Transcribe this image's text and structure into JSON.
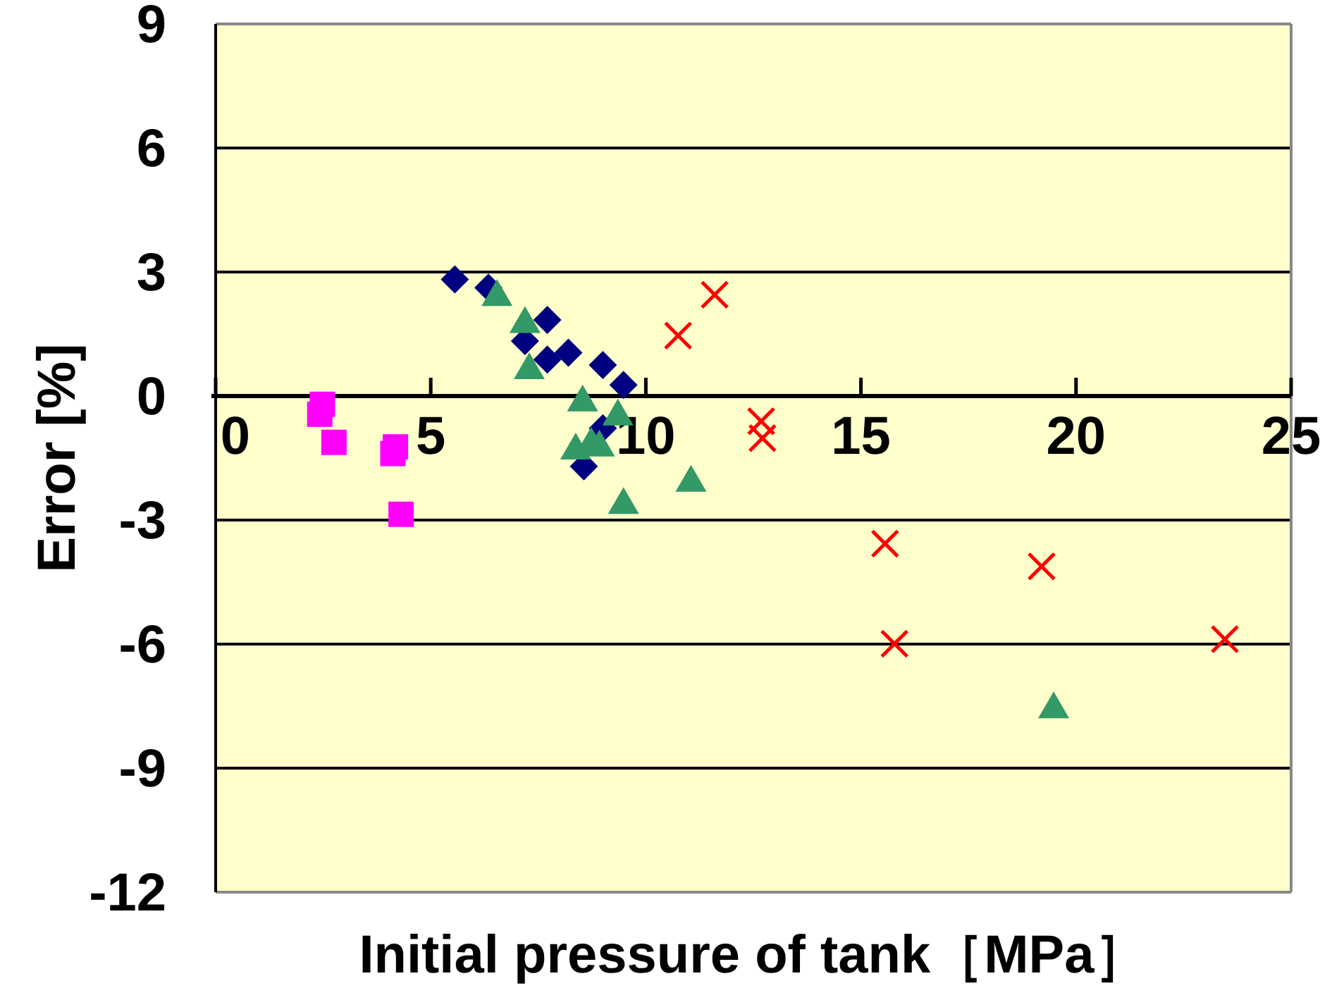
{
  "chart_data": {
    "type": "scatter",
    "xlabel": "Initial pressure of tank［MPa］",
    "ylabel": "Error [%]",
    "xlim": [
      0,
      25
    ],
    "xticks": [
      0,
      5,
      10,
      15,
      20,
      25
    ],
    "ylim": [
      -12,
      9
    ],
    "yticks": [
      -12,
      -9,
      -6,
      -3,
      0,
      3,
      6,
      9
    ],
    "grid": "y",
    "series": [
      {
        "color": "#000080",
        "marker": "diamond",
        "x": [
          5.56,
          6.34,
          7.71,
          7.19,
          7.71,
          8.2,
          9.0,
          9.48,
          9.0,
          8.56
        ],
        "values": [
          2.82,
          2.62,
          1.84,
          1.33,
          0.88,
          1.05,
          0.75,
          0.27,
          -0.78,
          -1.7
        ]
      },
      {
        "color": "#339966",
        "marker": "triangle",
        "x": [
          6.54,
          7.19,
          7.29,
          8.53,
          9.35,
          8.37,
          8.73,
          8.92,
          9.48,
          11.05,
          19.48
        ],
        "values": [
          2.45,
          1.8,
          0.68,
          -0.1,
          -0.44,
          -1.26,
          -1.12,
          -1.19,
          -2.58,
          -2.04,
          -7.52
        ]
      },
      {
        "color": "#ff00ff",
        "marker": "square",
        "x": [
          2.48,
          2.42,
          2.75,
          4.18,
          4.12,
          4.31
        ],
        "values": [
          -0.2,
          -0.44,
          -1.12,
          -1.23,
          -1.39,
          -2.86
        ]
      },
      {
        "color": "#ff0000",
        "marker": "cross",
        "x": [
          10.75,
          11.6,
          12.68,
          12.71,
          15.56,
          15.78,
          19.2,
          23.46
        ],
        "values": [
          1.46,
          2.45,
          -0.61,
          -1.02,
          -3.57,
          -5.99,
          -4.12,
          -5.88
        ]
      }
    ]
  }
}
